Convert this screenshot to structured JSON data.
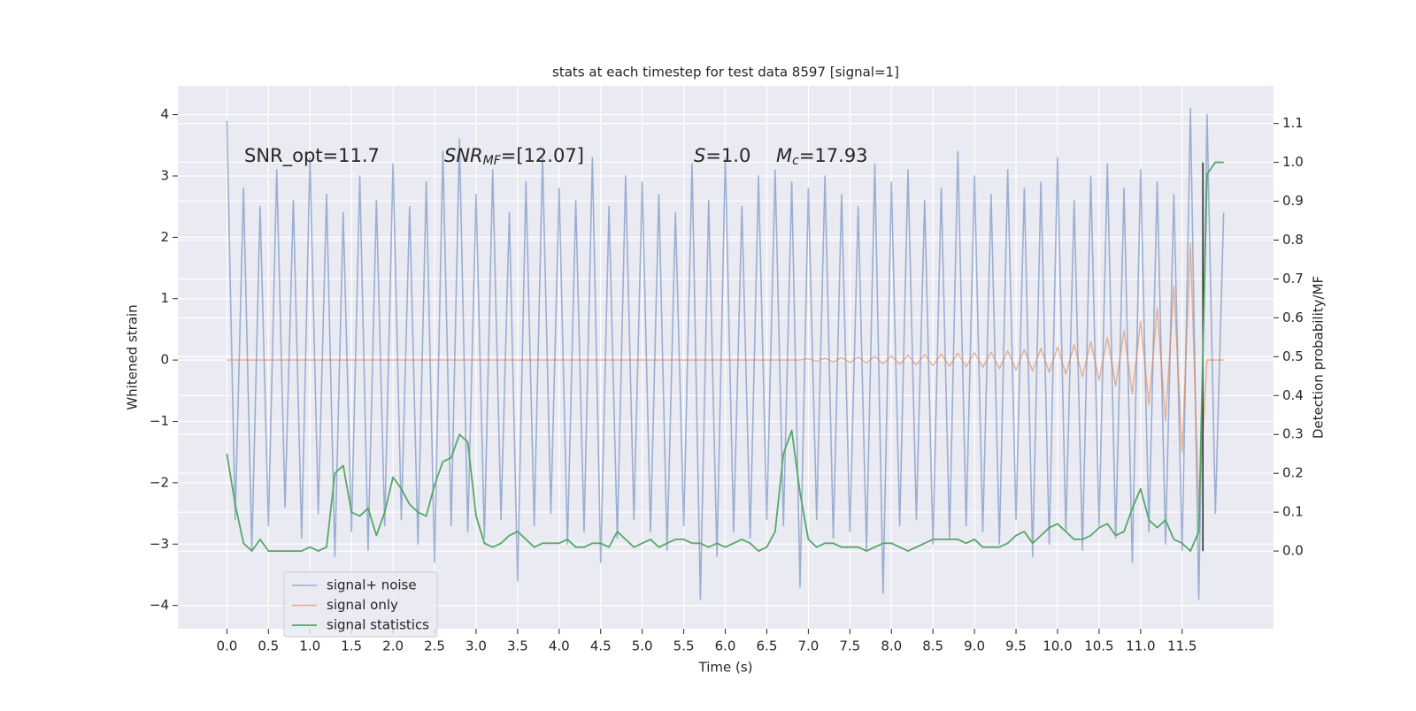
{
  "chart_data": {
    "type": "line",
    "title": "stats at each timestep for test data 8597 [signal=1]",
    "xlabel": "Time (s)",
    "ylabel": "Whitened strain",
    "y2label": "Detection probability/MF",
    "annotations": [
      {
        "text": "SNR_opt=11.7"
      },
      {
        "base": "SNR",
        "sub": "MF",
        "text": "=[12.07]"
      },
      {
        "base": "S",
        "text": "=1.0"
      },
      {
        "base": "M",
        "sub": "c",
        "text": "=17.93"
      }
    ],
    "x": [
      0,
      0.1,
      0.2,
      0.3,
      0.4,
      0.5,
      0.6,
      0.7,
      0.8,
      0.9,
      1,
      1.1,
      1.2,
      1.3,
      1.4,
      1.5,
      1.6,
      1.7,
      1.8,
      1.9,
      2,
      2.1,
      2.2,
      2.3,
      2.4,
      2.5,
      2.6,
      2.7,
      2.8,
      2.9,
      3,
      3.1,
      3.2,
      3.3,
      3.4,
      3.5,
      3.6,
      3.7,
      3.8,
      3.9,
      4,
      4.1,
      4.2,
      4.3,
      4.4,
      4.5,
      4.6,
      4.7,
      4.8,
      4.9,
      5,
      5.1,
      5.2,
      5.3,
      5.4,
      5.5,
      5.6,
      5.7,
      5.8,
      5.9,
      6,
      6.1,
      6.2,
      6.3,
      6.4,
      6.5,
      6.6,
      6.7,
      6.8,
      6.9,
      7,
      7.1,
      7.2,
      7.3,
      7.4,
      7.5,
      7.6,
      7.7,
      7.8,
      7.9,
      8,
      8.1,
      8.2,
      8.3,
      8.4,
      8.5,
      8.6,
      8.7,
      8.8,
      8.9,
      9,
      9.1,
      9.2,
      9.3,
      9.4,
      9.5,
      9.6,
      9.7,
      9.8,
      9.9,
      10,
      10.1,
      10.2,
      10.3,
      10.4,
      10.5,
      10.6,
      10.7,
      10.8,
      10.9,
      11,
      11.1,
      11.2,
      11.3,
      11.4,
      11.5,
      11.6,
      11.7,
      11.8,
      11.9,
      12
    ],
    "series": [
      {
        "name": "signal+ noise",
        "color": "#4c72b0",
        "axis": "y",
        "values": [
          3.9,
          -2.6,
          2.8,
          -3.1,
          2.5,
          -2.7,
          3.1,
          -2.4,
          2.6,
          -2.9,
          3.3,
          -2.5,
          2.7,
          -3.2,
          2.4,
          -2.8,
          3.0,
          -3.1,
          2.6,
          -2.7,
          3.2,
          -2.6,
          2.5,
          -3.0,
          2.9,
          -3.3,
          3.4,
          -2.7,
          3.6,
          -2.8,
          2.7,
          -2.9,
          3.1,
          -2.6,
          2.4,
          -3.6,
          2.9,
          -2.7,
          3.3,
          -2.5,
          2.8,
          -3.0,
          2.6,
          -2.8,
          3.3,
          -3.3,
          2.5,
          -2.9,
          3.0,
          -2.6,
          2.9,
          -2.8,
          2.7,
          -3.1,
          2.4,
          -2.7,
          3.2,
          -3.9,
          2.6,
          -3.2,
          3.3,
          -2.8,
          2.5,
          -2.9,
          3.0,
          -2.6,
          3.1,
          -2.7,
          2.9,
          -3.7,
          2.8,
          -2.6,
          3.0,
          -2.9,
          2.7,
          -2.8,
          2.5,
          -3.1,
          3.2,
          -3.8,
          2.9,
          -2.7,
          3.1,
          -2.6,
          2.6,
          -3.0,
          2.8,
          -2.9,
          3.4,
          -2.7,
          3.0,
          -2.8,
          2.7,
          -3.0,
          3.1,
          -2.6,
          2.8,
          -3.2,
          2.9,
          -3.0,
          3.3,
          -2.8,
          2.6,
          -3.1,
          3.0,
          -2.7,
          3.2,
          -2.9,
          2.8,
          -3.3,
          3.1,
          -2.8,
          2.9,
          -3.0,
          2.7,
          -3.1,
          4.1,
          -3.9,
          4.0,
          -2.5,
          2.4
        ]
      },
      {
        "name": "signal only",
        "color": "#dd8452",
        "axis": "y",
        "values": [
          0,
          0,
          0,
          0,
          0,
          0,
          0,
          0,
          0,
          0,
          0,
          0,
          0,
          0,
          0,
          0,
          0,
          0,
          0,
          0,
          0,
          0,
          0,
          0,
          0,
          0,
          0,
          0,
          0,
          0,
          0,
          0,
          0,
          0,
          0,
          0,
          0,
          0,
          0,
          0,
          0,
          0,
          0,
          0,
          0,
          0,
          0,
          0,
          0,
          0,
          0,
          0,
          0,
          0,
          0,
          0,
          0,
          0,
          0,
          0,
          0,
          0,
          0,
          0,
          0,
          0,
          0,
          0,
          0,
          0,
          0.02,
          -0.02,
          0.03,
          -0.03,
          0.04,
          -0.04,
          0.05,
          -0.05,
          0.06,
          -0.06,
          0.07,
          -0.07,
          0.08,
          -0.08,
          0.09,
          -0.09,
          0.1,
          -0.1,
          0.11,
          -0.11,
          0.12,
          -0.12,
          0.13,
          -0.14,
          0.15,
          -0.16,
          0.17,
          -0.18,
          0.19,
          -0.2,
          0.21,
          -0.23,
          0.25,
          -0.27,
          0.3,
          -0.33,
          0.37,
          -0.42,
          0.48,
          -0.55,
          0.63,
          -0.73,
          0.85,
          -1.0,
          1.2,
          -1.5,
          1.9,
          -2.4,
          0,
          0,
          0
        ]
      },
      {
        "name": "signal statistics",
        "color": "#55a868",
        "axis": "y2",
        "values": [
          0.25,
          0.12,
          0.02,
          0.0,
          0.03,
          0.0,
          0.0,
          0.0,
          0.0,
          0.0,
          0.01,
          0.0,
          0.01,
          0.2,
          0.22,
          0.1,
          0.09,
          0.11,
          0.04,
          0.1,
          0.19,
          0.16,
          0.12,
          0.1,
          0.09,
          0.17,
          0.23,
          0.24,
          0.3,
          0.28,
          0.09,
          0.02,
          0.01,
          0.02,
          0.04,
          0.05,
          0.03,
          0.01,
          0.02,
          0.02,
          0.02,
          0.03,
          0.01,
          0.01,
          0.02,
          0.02,
          0.01,
          0.05,
          0.03,
          0.01,
          0.02,
          0.03,
          0.01,
          0.02,
          0.03,
          0.03,
          0.02,
          0.02,
          0.01,
          0.02,
          0.01,
          0.02,
          0.03,
          0.02,
          0.0,
          0.01,
          0.05,
          0.25,
          0.31,
          0.15,
          0.03,
          0.01,
          0.02,
          0.02,
          0.01,
          0.01,
          0.01,
          0.0,
          0.01,
          0.02,
          0.02,
          0.01,
          0.0,
          0.01,
          0.02,
          0.03,
          0.03,
          0.03,
          0.03,
          0.02,
          0.03,
          0.01,
          0.01,
          0.01,
          0.02,
          0.04,
          0.05,
          0.02,
          0.04,
          0.06,
          0.07,
          0.05,
          0.03,
          0.03,
          0.04,
          0.06,
          0.07,
          0.04,
          0.05,
          0.11,
          0.16,
          0.08,
          0.06,
          0.08,
          0.03,
          0.02,
          0.0,
          0.05,
          0.97,
          1.0,
          1.0
        ]
      }
    ],
    "vline": {
      "x": 11.75,
      "y2": [
        0,
        1.0
      ],
      "color": "#333333"
    },
    "xlim": [
      -0.59,
      12.6
    ],
    "xticks": [
      {
        "value": 0,
        "label": "0.0"
      },
      0.5,
      {
        "value": 1,
        "label": "1.0"
      },
      1.5,
      {
        "value": 2,
        "label": "2.0"
      },
      2.5,
      {
        "value": 3,
        "label": "3.0"
      },
      3.5,
      {
        "value": 4,
        "label": "4.0"
      },
      4.5,
      {
        "value": 5,
        "label": "5.0"
      },
      5.5,
      {
        "value": 6,
        "label": "6.0"
      },
      6.5,
      {
        "value": 7,
        "label": "7.0"
      },
      7.5,
      {
        "value": 8,
        "label": "8.0"
      },
      8.5,
      {
        "value": 9,
        "label": "9.0"
      },
      9.5,
      {
        "value": 10,
        "label": "10.0"
      },
      10.5,
      {
        "value": 11,
        "label": "11.0"
      },
      11.5
    ],
    "ylim": [
      -4.38,
      4.47
    ],
    "yticks": [
      {
        "value": -4,
        "label": "−4"
      },
      {
        "value": -3,
        "label": "−3"
      },
      {
        "value": -2,
        "label": "−2"
      },
      {
        "value": -1,
        "label": "−1"
      },
      0,
      1,
      2,
      3,
      4
    ],
    "y2lim": [
      -0.2,
      1.197
    ],
    "y2ticks": [
      {
        "value": 0,
        "label": "0.0"
      },
      0.1,
      0.2,
      0.3,
      0.4,
      0.5,
      0.6,
      0.7,
      0.8,
      0.9,
      {
        "value": 1,
        "label": "1.0"
      },
      1.1
    ],
    "grid": true,
    "legend": "lower left"
  }
}
